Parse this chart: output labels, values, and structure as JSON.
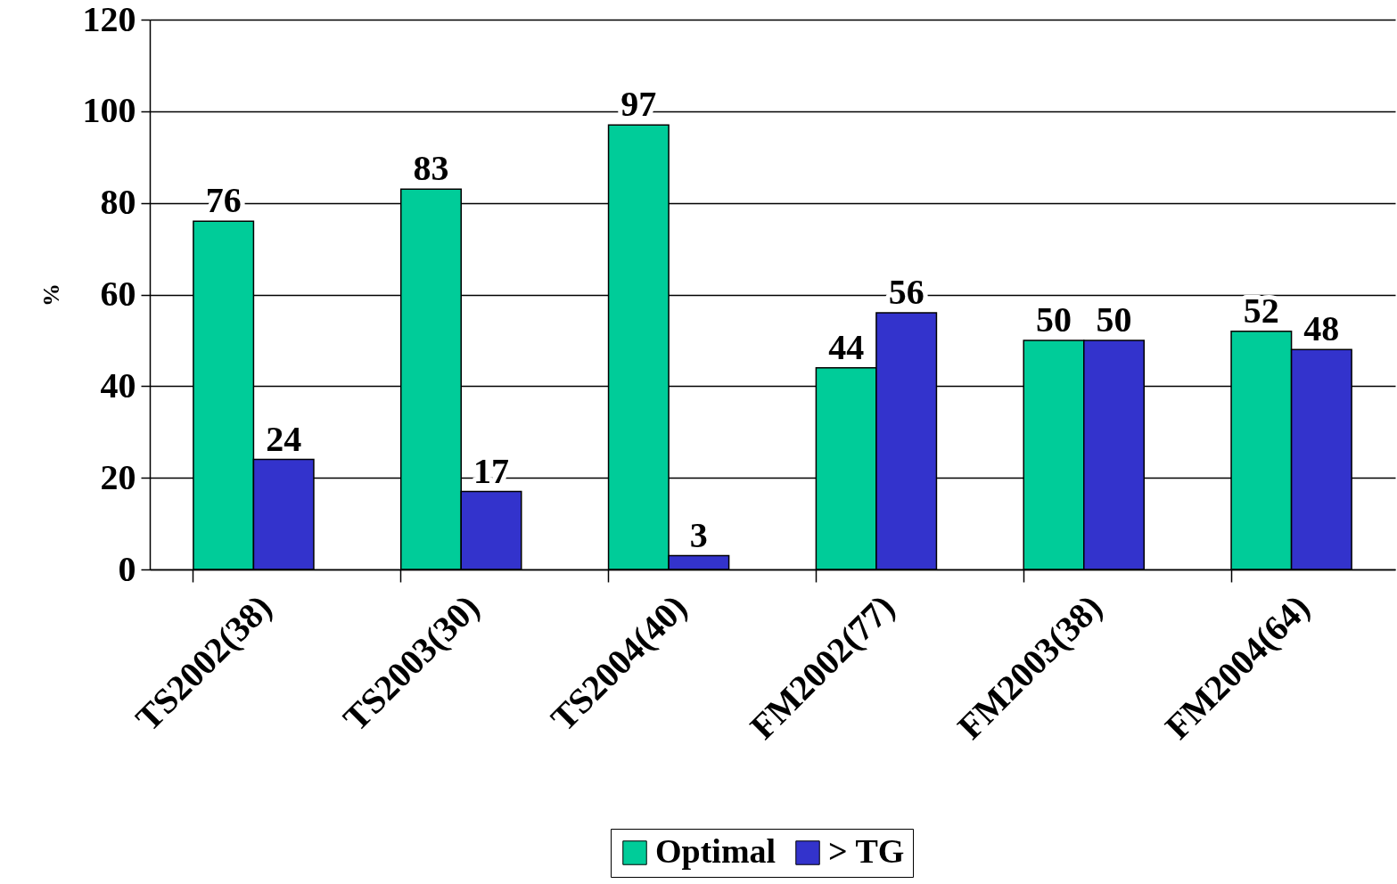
{
  "chart_data": {
    "type": "bar",
    "ylabel": "%",
    "categories": [
      "TS2002(38)",
      "TS2003(30)",
      "TS2004(40)",
      "FM2002(77)",
      "FM2003(38)",
      "FM2004(64)"
    ],
    "series": [
      {
        "name": "Optimal",
        "color": "#00cc99",
        "values": [
          76,
          83,
          97,
          44,
          50,
          52
        ]
      },
      {
        "name": "> TG",
        "color": "#3333cc",
        "values": [
          24,
          17,
          3,
          56,
          50,
          48
        ]
      }
    ],
    "ylim": [
      0,
      120
    ],
    "yticks": [
      0,
      20,
      40,
      60,
      80,
      100,
      120
    ],
    "grid": "y",
    "legend": "bottom",
    "data_labels": true
  }
}
